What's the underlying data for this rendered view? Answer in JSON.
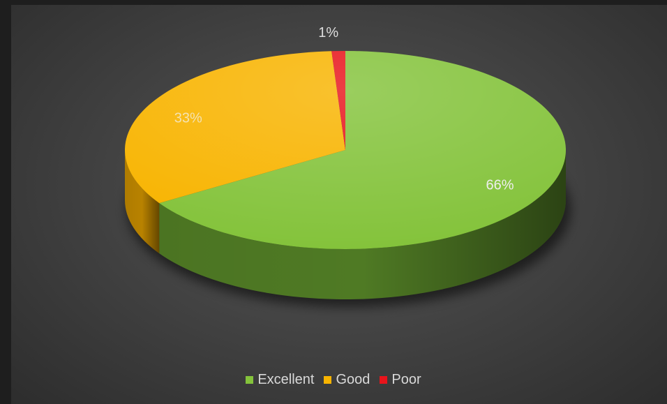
{
  "chart_data": {
    "type": "pie",
    "style": "3d",
    "categories": [
      "Excellent",
      "Good",
      "Poor"
    ],
    "values": [
      66,
      33,
      1
    ],
    "labels": [
      "66%",
      "33%",
      "1%"
    ],
    "colors": [
      "#84c33b",
      "#f8b400",
      "#e8141b"
    ],
    "side_colors": [
      "#4f7a24",
      "#b88200",
      "#a00d12"
    ],
    "label_colors": [
      "#eeeeee",
      "#f4e2b0",
      "#dddddd"
    ],
    "legend": "bottom",
    "title": ""
  }
}
